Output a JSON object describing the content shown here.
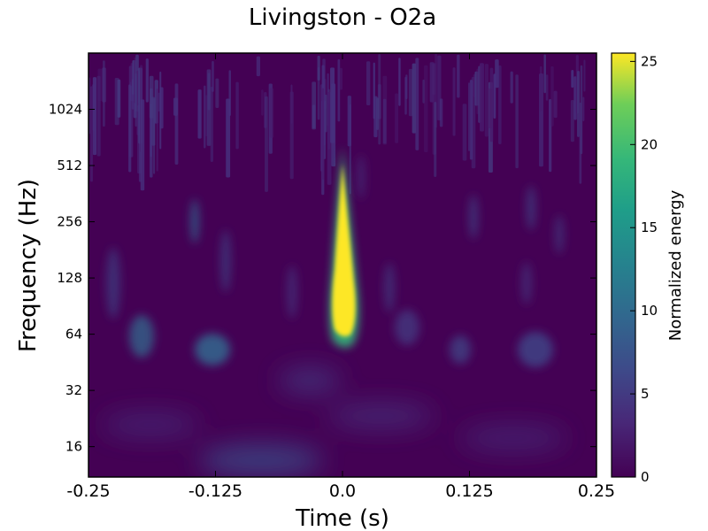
{
  "chart_data": {
    "type": "heatmap",
    "title": "Livingston - O2a",
    "xlabel": "Time (s)",
    "ylabel": "Frequency (Hz)",
    "x_ticks": [
      "-0.25",
      "-0.125",
      "0.0",
      "0.125",
      "0.25"
    ],
    "x_tick_values": [
      -0.25,
      -0.125,
      0.0,
      0.125,
      0.25
    ],
    "xlim": [
      -0.25,
      0.25
    ],
    "y_scale": "log2",
    "y_ticks": [
      "16",
      "32",
      "64",
      "128",
      "256",
      "512",
      "1024"
    ],
    "y_tick_values": [
      16,
      32,
      64,
      128,
      256,
      512,
      1024
    ],
    "ylim": [
      11,
      2048
    ],
    "colorbar": {
      "label": "Normalized energy",
      "ticks": [
        "0",
        "5",
        "10",
        "15",
        "20",
        "25"
      ],
      "tick_values": [
        0,
        5,
        10,
        15,
        20,
        25
      ],
      "range": [
        0,
        25.5
      ],
      "colormap": "viridis"
    },
    "grid": false,
    "peak": {
      "time": 0.0,
      "frequency": 90,
      "energy": 25.5
    },
    "features": [
      {
        "time": 0.0,
        "frequency_range": [
          55,
          600
        ],
        "energy": 25.5
      },
      {
        "time": -0.14,
        "frequency": 58,
        "energy": 6
      },
      {
        "time": -0.19,
        "frequency": 62,
        "energy": 5
      },
      {
        "time": -0.07,
        "frequency": 14,
        "energy": 5
      },
      {
        "time": 0.19,
        "frequency": 55,
        "energy": 4
      },
      {
        "time": -0.145,
        "frequency": 260,
        "energy": 5
      },
      {
        "time": 0.13,
        "frequency": 256,
        "energy": 4
      }
    ]
  },
  "colors": {
    "viridis_low": "#440154",
    "viridis_mid": "#21918c",
    "viridis_high": "#fde725"
  }
}
